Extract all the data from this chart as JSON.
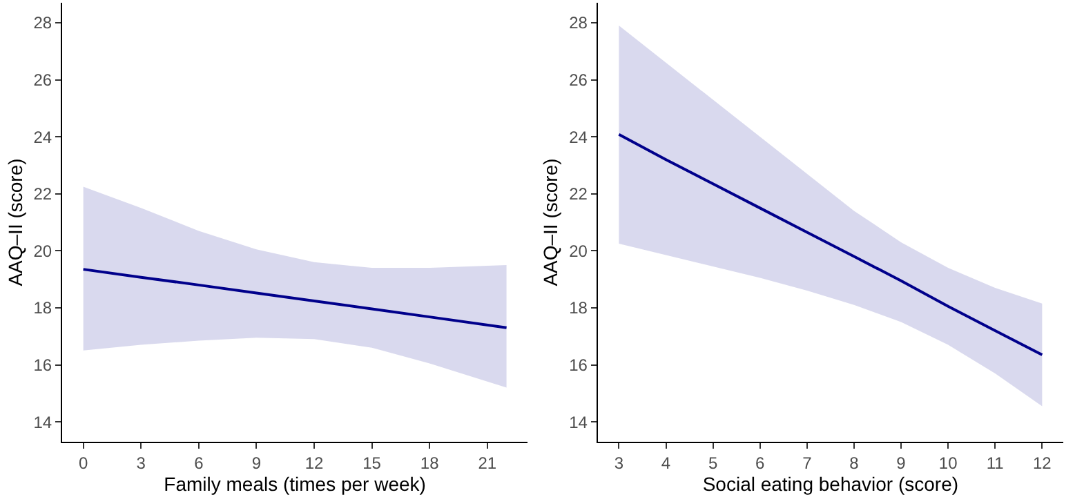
{
  "chart_data": [
    {
      "type": "line",
      "xlabel": "Family meals (times per week)",
      "ylabel": "AAQ–II (score)",
      "xlim": [
        -1.1,
        23.1
      ],
      "xticks": [
        0,
        3,
        6,
        9,
        12,
        15,
        18,
        21
      ],
      "ylim": [
        13.3,
        28.7
      ],
      "yticks": [
        14,
        16,
        18,
        20,
        22,
        24,
        26,
        28
      ],
      "x": [
        0,
        3,
        6,
        9,
        12,
        15,
        18,
        22
      ],
      "series": [
        {
          "color": "#00008b",
          "values": [
            19.35,
            19.07,
            18.8,
            18.52,
            18.24,
            17.96,
            17.68,
            17.3
          ],
          "lower": [
            16.5,
            16.7,
            16.85,
            16.95,
            16.9,
            16.6,
            16.05,
            15.2
          ],
          "upper": [
            22.25,
            21.5,
            20.7,
            20.05,
            19.6,
            19.4,
            19.4,
            19.5
          ]
        }
      ]
    },
    {
      "type": "line",
      "xlabel": "Social eating behavior (score)",
      "ylabel": "AAQ–II (score)",
      "xlim": [
        2.55,
        12.45
      ],
      "xticks": [
        3,
        4,
        5,
        6,
        7,
        8,
        9,
        10,
        11,
        12
      ],
      "ylim": [
        13.3,
        28.7
      ],
      "yticks": [
        14,
        16,
        18,
        20,
        22,
        24,
        26,
        28
      ],
      "x": [
        3,
        4,
        5,
        6,
        7,
        8,
        9,
        10,
        11,
        12
      ],
      "series": [
        {
          "color": "#00008b",
          "values": [
            24.08,
            23.2,
            22.35,
            21.5,
            20.65,
            19.8,
            18.95,
            18.05,
            17.2,
            16.35
          ],
          "lower": [
            20.25,
            19.85,
            19.45,
            19.05,
            18.6,
            18.1,
            17.5,
            16.7,
            15.7,
            14.55
          ],
          "upper": [
            27.9,
            26.6,
            25.3,
            24.0,
            22.7,
            21.4,
            20.3,
            19.4,
            18.7,
            18.15
          ]
        }
      ]
    }
  ]
}
